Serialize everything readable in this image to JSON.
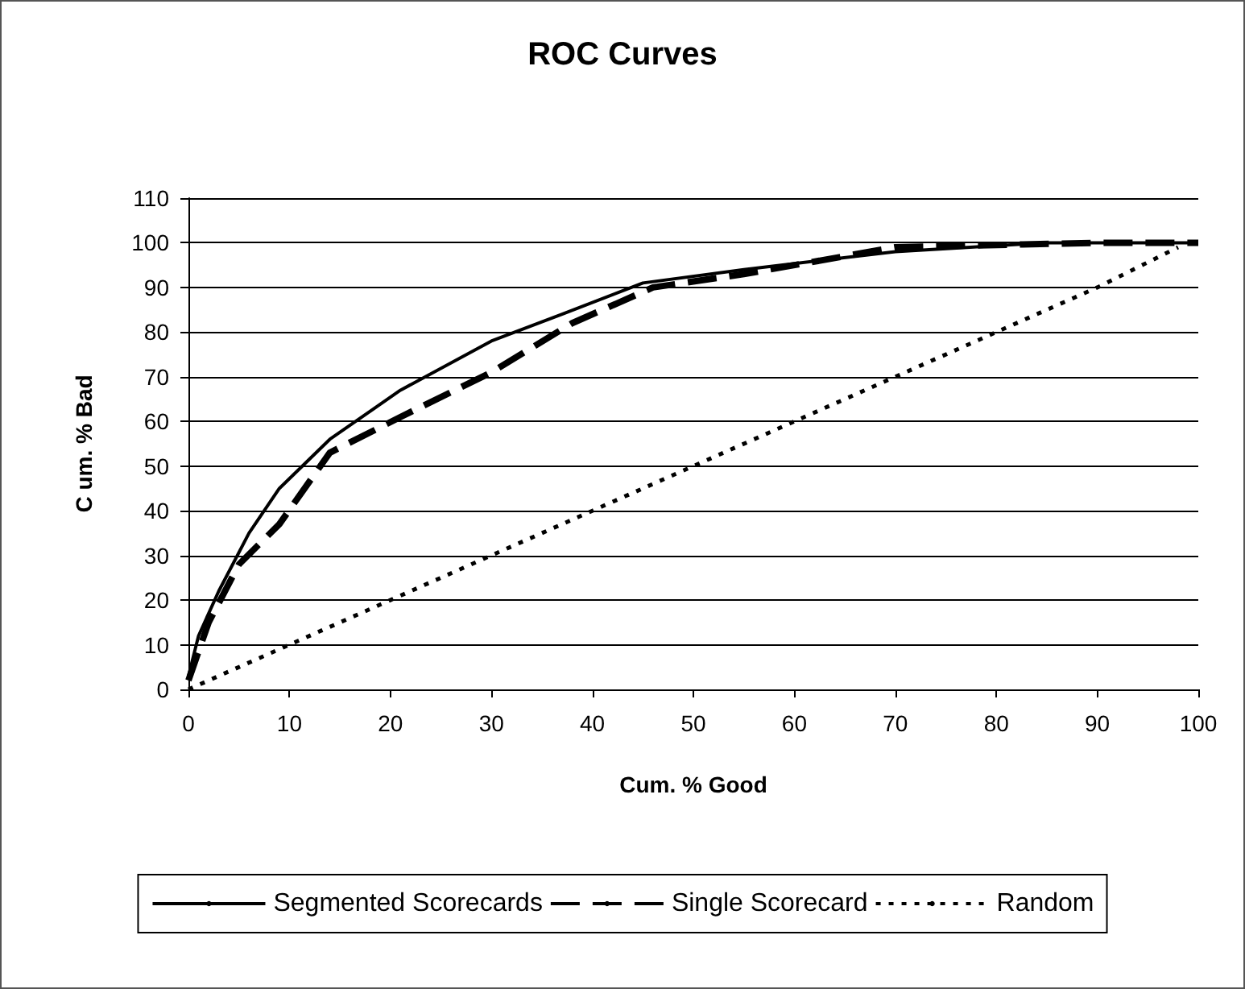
{
  "chart_data": {
    "type": "line",
    "title": "ROC Curves",
    "xlabel": "Cum. % Good",
    "ylabel": "C um. % Bad",
    "xlim": [
      0,
      100
    ],
    "xticks": [
      0,
      10,
      20,
      30,
      40,
      50,
      60,
      70,
      80,
      90,
      100
    ],
    "ylim": [
      0,
      110
    ],
    "yticks": [
      0,
      10,
      20,
      30,
      40,
      50,
      60,
      70,
      80,
      90,
      100,
      110
    ],
    "grid": "y",
    "legend": "bottom",
    "marker": "none",
    "series": [
      {
        "name": "Segmented Scorecards",
        "color": "#000000",
        "line_style": "solid",
        "x": [
          0,
          1,
          3,
          6,
          9,
          14,
          21,
          30,
          37,
          45,
          55,
          70,
          85,
          100
        ],
        "values": [
          3,
          12,
          22,
          35,
          45,
          56,
          67,
          78,
          84,
          91,
          94,
          98,
          100,
          100
        ]
      },
      {
        "name": "Single Scorecard",
        "color": "#000000",
        "line_style": "dashed",
        "x": [
          0,
          2,
          5,
          9,
          14,
          21,
          30,
          38,
          46,
          55,
          70,
          90,
          100
        ],
        "values": [
          2,
          15,
          28,
          37,
          53,
          61,
          71,
          82,
          90,
          93,
          99,
          100,
          100
        ]
      },
      {
        "name": "Random",
        "color": "#000000",
        "line_style": "dotted",
        "x": [
          0,
          10,
          20,
          30,
          40,
          50,
          60,
          70,
          80,
          90,
          98
        ],
        "values": [
          0,
          10,
          20,
          30,
          40,
          50,
          60,
          70,
          80,
          90,
          99
        ]
      }
    ]
  }
}
